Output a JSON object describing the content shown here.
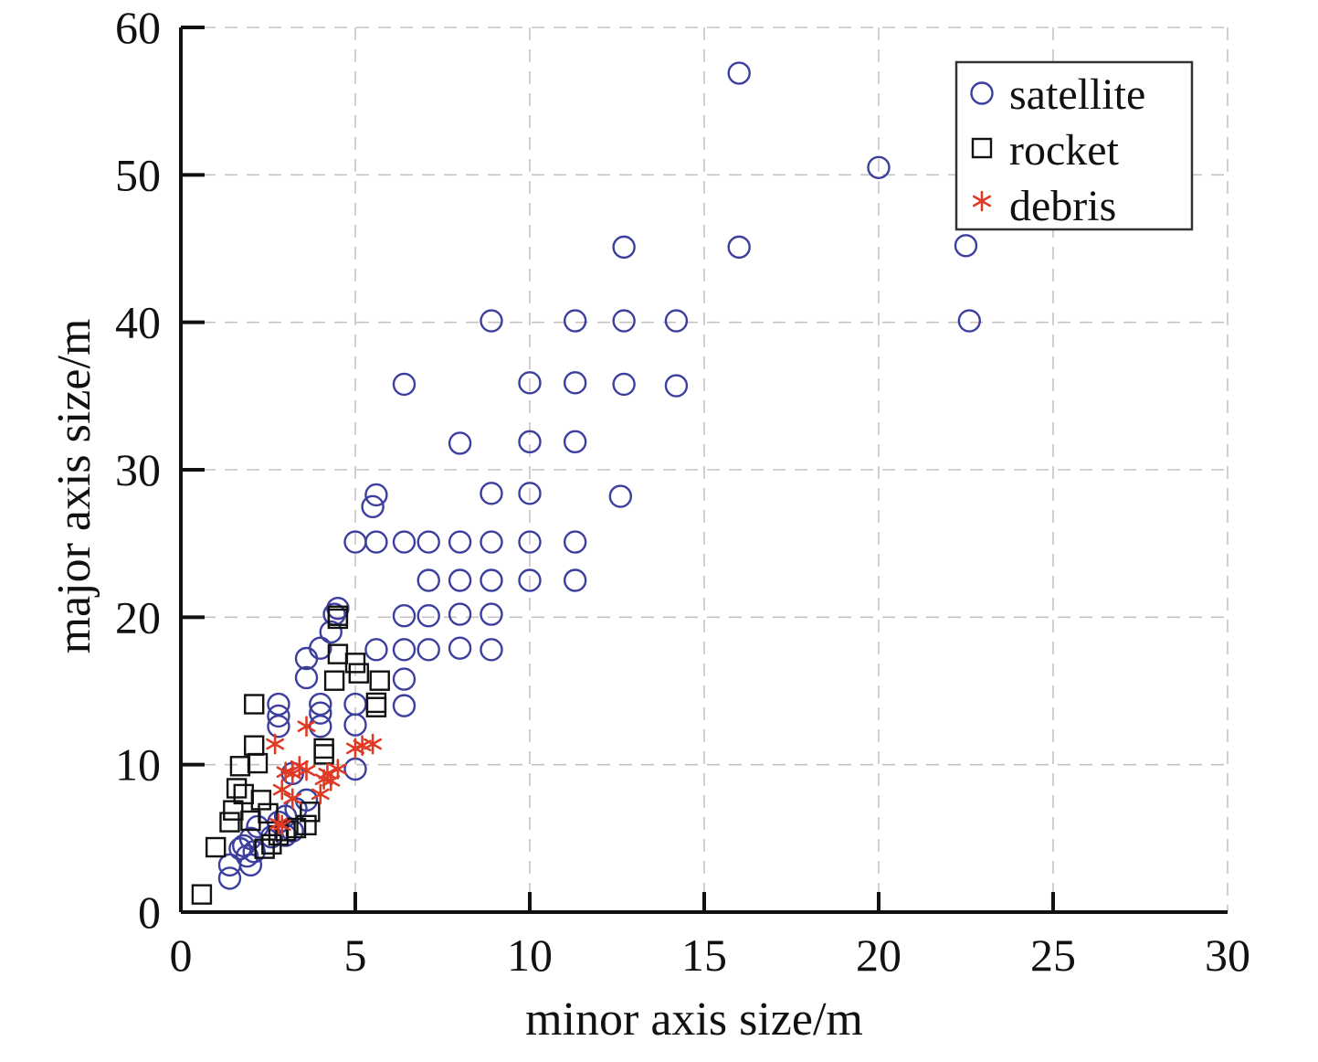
{
  "chart_data": {
    "type": "scatter",
    "xlabel": "minor axis size/m",
    "ylabel": "major axis size/m",
    "xlim": [
      0,
      30
    ],
    "ylim": [
      0,
      60
    ],
    "x_ticks": [
      "0",
      "5",
      "10",
      "15",
      "20",
      "25",
      "30"
    ],
    "y_ticks": [
      "0",
      "10",
      "20",
      "30",
      "40",
      "50",
      "60"
    ],
    "grid": true,
    "legend_position": "top-right",
    "series": [
      {
        "name": "satellite",
        "marker": "circle",
        "color": "#3c3f9e",
        "points": [
          [
            16.0,
            56.9
          ],
          [
            20.0,
            50.5
          ],
          [
            12.7,
            45.1
          ],
          [
            16.0,
            45.1
          ],
          [
            22.5,
            45.2
          ],
          [
            8.9,
            40.1
          ],
          [
            11.3,
            40.1
          ],
          [
            12.7,
            40.1
          ],
          [
            14.2,
            40.1
          ],
          [
            22.6,
            40.1
          ],
          [
            6.4,
            35.8
          ],
          [
            10.0,
            35.9
          ],
          [
            11.3,
            35.9
          ],
          [
            12.7,
            35.8
          ],
          [
            14.2,
            35.7
          ],
          [
            8.0,
            31.8
          ],
          [
            10.0,
            31.9
          ],
          [
            11.3,
            31.9
          ],
          [
            5.6,
            28.3
          ],
          [
            5.5,
            27.5
          ],
          [
            8.9,
            28.4
          ],
          [
            10.0,
            28.4
          ],
          [
            12.6,
            28.2
          ],
          [
            5.0,
            25.1
          ],
          [
            5.6,
            25.1
          ],
          [
            6.4,
            25.1
          ],
          [
            7.1,
            25.1
          ],
          [
            8.0,
            25.1
          ],
          [
            8.9,
            25.1
          ],
          [
            10.0,
            25.1
          ],
          [
            11.3,
            25.1
          ],
          [
            7.1,
            22.5
          ],
          [
            8.0,
            22.5
          ],
          [
            8.9,
            22.5
          ],
          [
            10.0,
            22.5
          ],
          [
            11.3,
            22.5
          ],
          [
            4.5,
            20.6
          ],
          [
            4.4,
            20.2
          ],
          [
            6.4,
            20.1
          ],
          [
            7.1,
            20.1
          ],
          [
            8.0,
            20.2
          ],
          [
            8.9,
            20.2
          ],
          [
            4.3,
            19.0
          ],
          [
            4.0,
            17.9
          ],
          [
            3.6,
            17.2
          ],
          [
            5.6,
            17.8
          ],
          [
            6.4,
            17.8
          ],
          [
            7.1,
            17.8
          ],
          [
            8.0,
            17.9
          ],
          [
            8.9,
            17.8
          ],
          [
            3.6,
            15.9
          ],
          [
            6.4,
            15.8
          ],
          [
            4.0,
            14.1
          ],
          [
            5.0,
            14.1
          ],
          [
            6.4,
            14.0
          ],
          [
            2.8,
            14.1
          ],
          [
            2.8,
            13.3
          ],
          [
            2.8,
            12.6
          ],
          [
            4.0,
            13.5
          ],
          [
            4.0,
            12.6
          ],
          [
            5.0,
            12.7
          ],
          [
            5.0,
            9.7
          ],
          [
            3.2,
            9.4
          ],
          [
            3.6,
            7.6
          ],
          [
            3.3,
            7.0
          ],
          [
            3.0,
            6.5
          ],
          [
            2.8,
            6.1
          ],
          [
            3.2,
            5.5
          ],
          [
            3.0,
            5.2
          ],
          [
            2.6,
            5.1
          ],
          [
            2.2,
            5.8
          ],
          [
            2.0,
            5.0
          ],
          [
            1.8,
            4.5
          ],
          [
            2.1,
            4.1
          ],
          [
            1.9,
            3.8
          ],
          [
            2.0,
            3.2
          ],
          [
            1.4,
            3.2
          ],
          [
            1.4,
            2.3
          ],
          [
            1.7,
            4.3
          ]
        ]
      },
      {
        "name": "rocket",
        "marker": "square",
        "color": "#111111",
        "points": [
          [
            0.6,
            1.2
          ],
          [
            1.0,
            4.4
          ],
          [
            1.4,
            6.1
          ],
          [
            1.5,
            6.9
          ],
          [
            1.6,
            8.4
          ],
          [
            1.7,
            9.9
          ],
          [
            1.8,
            8.0
          ],
          [
            2.0,
            6.2
          ],
          [
            2.1,
            11.3
          ],
          [
            2.1,
            14.1
          ],
          [
            2.2,
            10.1
          ],
          [
            2.3,
            7.6
          ],
          [
            2.5,
            6.7
          ],
          [
            2.4,
            4.3
          ],
          [
            2.6,
            4.6
          ],
          [
            2.8,
            5.2
          ],
          [
            3.0,
            5.5
          ],
          [
            3.3,
            5.7
          ],
          [
            3.6,
            5.9
          ],
          [
            3.7,
            6.8
          ],
          [
            4.1,
            10.7
          ],
          [
            4.1,
            11.1
          ],
          [
            4.4,
            15.7
          ],
          [
            4.5,
            17.5
          ],
          [
            4.5,
            20.1
          ],
          [
            4.5,
            19.9
          ],
          [
            5.0,
            16.9
          ],
          [
            5.1,
            16.2
          ],
          [
            5.6,
            14.2
          ],
          [
            5.6,
            13.9
          ],
          [
            5.7,
            15.7
          ]
        ]
      },
      {
        "name": "debris",
        "marker": "asterisk",
        "color": "#e03a25",
        "points": [
          [
            2.7,
            11.4
          ],
          [
            2.9,
            8.3
          ],
          [
            2.8,
            6.0
          ],
          [
            2.9,
            5.9
          ],
          [
            3.0,
            9.5
          ],
          [
            3.2,
            9.4
          ],
          [
            3.4,
            9.9
          ],
          [
            3.6,
            12.6
          ],
          [
            3.6,
            9.6
          ],
          [
            4.0,
            8.0
          ],
          [
            4.1,
            9.0
          ],
          [
            4.2,
            9.4
          ],
          [
            4.5,
            9.7
          ],
          [
            5.0,
            11.1
          ],
          [
            5.2,
            11.3
          ],
          [
            5.5,
            11.4
          ],
          [
            4.3,
            8.9
          ],
          [
            3.2,
            7.7
          ]
        ]
      }
    ]
  }
}
